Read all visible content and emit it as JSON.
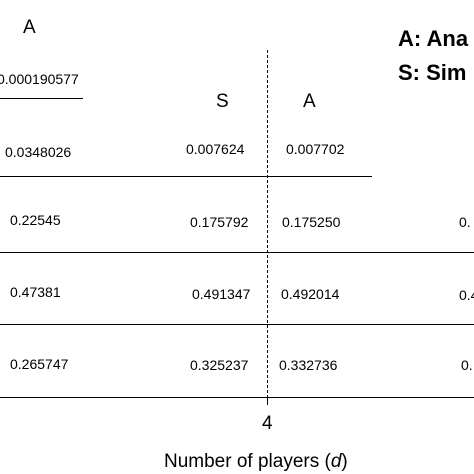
{
  "headers": {
    "left_col": "A",
    "mid_sim": "S",
    "mid_ana": "A"
  },
  "legend": {
    "analytical": "A: Ana",
    "simulation": "S: Sim"
  },
  "left_column": {
    "top_value": "0.000190577",
    "rows": [
      "0.0348026",
      "0.22545",
      "0.47381",
      "0.265747"
    ]
  },
  "middle_sim_column": {
    "rows": [
      "0.007624",
      "0.175792",
      "0.491347",
      "0.325237"
    ]
  },
  "middle_ana_column": {
    "rows": [
      "0.007702",
      "0.175250",
      "0.492014",
      "0.332736"
    ]
  },
  "right_fragments": [
    "0.",
    "0.4",
    "0."
  ],
  "x_axis": {
    "tick": "4",
    "label_prefix": "Number of players (",
    "label_var": "d",
    "label_suffix": ")"
  }
}
